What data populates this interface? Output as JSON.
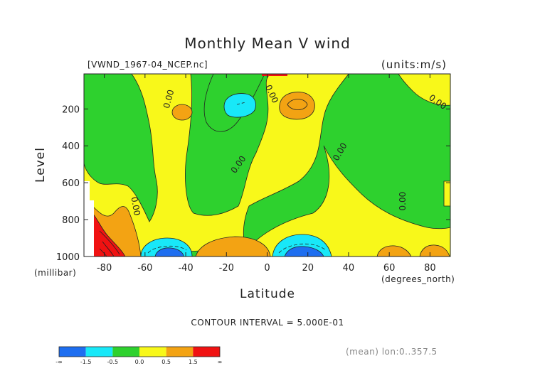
{
  "chart_data": {
    "type": "heatmap",
    "title": "Monthly Mean V wind",
    "file_label": "[VWND_1967-04_NCEP.nc]",
    "units_label": "(units:m/s)",
    "ylabel": "Level",
    "ylabel_unit": "(millibar)",
    "xlabel": "Latitude",
    "xlabel_unit": "(degrees_north)",
    "xlim": [
      -90,
      90
    ],
    "ylim": [
      1000,
      10
    ],
    "x_ticks": [
      "-80",
      "-60",
      "-40",
      "-20",
      "0",
      "20",
      "40",
      "60",
      "80"
    ],
    "x_tick_values": [
      -80,
      -60,
      -40,
      -20,
      0,
      20,
      40,
      60,
      80
    ],
    "y_ticks": [
      "200",
      "400",
      "600",
      "800",
      "1000"
    ],
    "y_tick_values": [
      200,
      400,
      600,
      800,
      1000
    ],
    "contour_interval_text": "CONTOUR INTERVAL = 5.000E-01",
    "contour_labels": [
      "0.00",
      "0.00",
      "0.00",
      "0.00",
      "0.00",
      "0.00",
      "0.00"
    ],
    "footer_note": "(mean) lon:0..357.5",
    "colorbar": {
      "labels": [
        "-∞",
        "-1.5",
        "-0.5",
        "0.0",
        "0.5",
        "1.5",
        "∞"
      ],
      "colors": [
        "#1e6ef0",
        "#18e8f8",
        "#2ed12e",
        "#f8f81a",
        "#f3a313",
        "#f01212"
      ]
    },
    "regions": [
      {
        "name": "green-field",
        "color": "#2ed12e"
      },
      {
        "name": "yellow-main",
        "color": "#f8f81a"
      },
      {
        "name": "orange-high",
        "color": "#f3a313"
      },
      {
        "name": "cyan-low",
        "color": "#18e8f8"
      },
      {
        "name": "blue-low",
        "color": "#1e6ef0"
      },
      {
        "name": "red-high",
        "color": "#f01212"
      }
    ]
  }
}
